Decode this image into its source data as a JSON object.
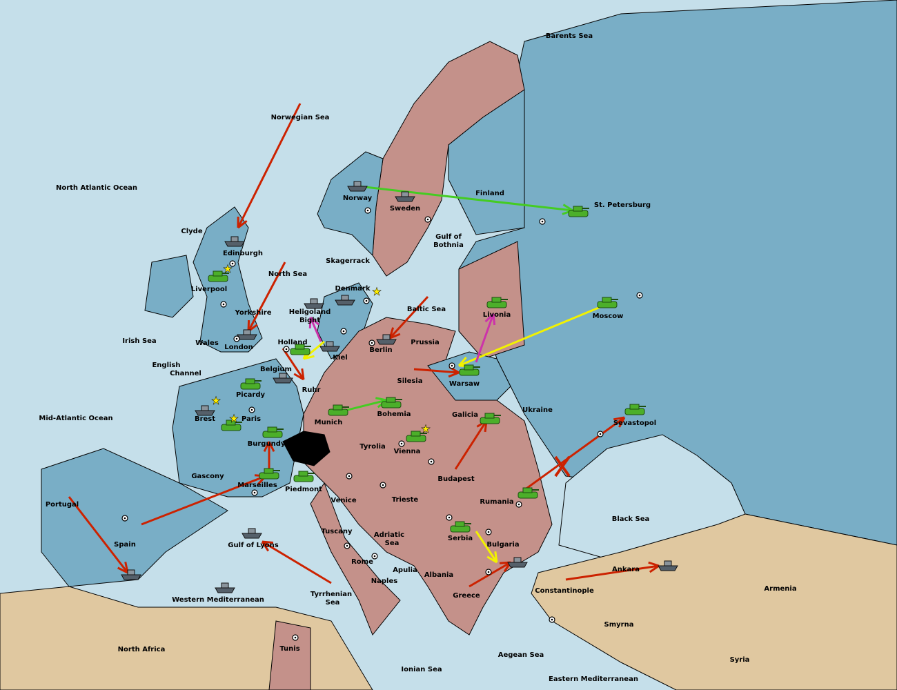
{
  "colors": {
    "sea": "#c5dfea",
    "neutral_land": "#79aec6",
    "empire": "#c4918a",
    "desert": "#e0c8a0",
    "switzerland": "#000000",
    "tank": "#4caf2a",
    "ship": "#55606a",
    "move_red": "#cc2200",
    "support_yellow": "#f2f200",
    "convoy_magenta": "#cc33aa",
    "hold_green": "#44cc22",
    "supply_star": "#ffee00"
  },
  "provinces": [
    "Barents Sea",
    "Norwegian Sea",
    "North Atlantic Ocean",
    "Norway",
    "Sweden",
    "Finland",
    "St. Petersburg",
    "Clyde",
    "Edinburgh",
    "Gulf of",
    "Bothnia",
    "Skagerrack",
    "Liverpool",
    "North Sea",
    "Denmark",
    "Baltic Sea",
    "Livonia",
    "Moscow",
    "Yorkshire",
    "Heligoland",
    "Bight",
    "Irish Sea",
    "Wales",
    "London",
    "Holland",
    "Prussia",
    "Berlin",
    "Kiel",
    "English",
    "Channel",
    "Belgium",
    "Warsaw",
    "Silesia",
    "Ruhr",
    "Picardy",
    "Ukraine",
    "Mid-Atlantic Ocean",
    "Brest",
    "Paris",
    "Munich",
    "Bohemia",
    "Galicia",
    "Sevastopol",
    "Burgundy",
    "Tyrolia",
    "Vienna",
    "Gascony",
    "Budapest",
    "Marseilles",
    "Piedmont",
    "Portugal",
    "Venice",
    "Trieste",
    "Rumania",
    "Black Sea",
    "Tuscany",
    "Adriatic",
    "Sea",
    "Serbia",
    "Spain",
    "Gulf of Lyons",
    "Bulgaria",
    "Rome",
    "Apulia",
    "Ankara",
    "Naples",
    "Albania",
    "Armenia",
    "Constantinople",
    "Tyrrhenian",
    "Sea",
    "Greece",
    "Western Mediterranean",
    "Smyrna",
    "North Africa",
    "Tunis",
    "Aegean Sea",
    "Syria",
    "Ionian Sea",
    "Eastern Mediterranean"
  ],
  "units": [
    {
      "type": "fleet",
      "province": "Norway"
    },
    {
      "type": "fleet",
      "province": "Sweden"
    },
    {
      "type": "army",
      "province": "St. Petersburg"
    },
    {
      "type": "fleet",
      "province": "Edinburgh"
    },
    {
      "type": "army",
      "province": "Liverpool"
    },
    {
      "type": "fleet",
      "province": "London"
    },
    {
      "type": "fleet",
      "province": "Heligoland Bight"
    },
    {
      "type": "fleet",
      "province": "Denmark"
    },
    {
      "type": "army",
      "province": "Livonia"
    },
    {
      "type": "army",
      "province": "Moscow"
    },
    {
      "type": "fleet",
      "province": "Berlin"
    },
    {
      "type": "army",
      "province": "Holland"
    },
    {
      "type": "fleet",
      "province": "Kiel"
    },
    {
      "type": "fleet",
      "province": "Belgium"
    },
    {
      "type": "army",
      "province": "Warsaw"
    },
    {
      "type": "army",
      "province": "Picardy"
    },
    {
      "type": "fleet",
      "province": "Brest"
    },
    {
      "type": "army",
      "province": "Paris"
    },
    {
      "type": "army",
      "province": "Munich"
    },
    {
      "type": "army",
      "province": "Bohemia"
    },
    {
      "type": "army",
      "province": "Galicia"
    },
    {
      "type": "army",
      "province": "Sevastopol"
    },
    {
      "type": "army",
      "province": "Vienna"
    },
    {
      "type": "army",
      "province": "Burgundy"
    },
    {
      "type": "army",
      "province": "Marseilles"
    },
    {
      "type": "army",
      "province": "Piedmont"
    },
    {
      "type": "army",
      "province": "Rumania"
    },
    {
      "type": "army",
      "province": "Serbia"
    },
    {
      "type": "fleet",
      "province": "Gulf of Lyons"
    },
    {
      "type": "fleet",
      "province": "Spain"
    },
    {
      "type": "fleet",
      "province": "Aegean Sea"
    },
    {
      "type": "fleet",
      "province": "Ankara"
    },
    {
      "type": "fleet",
      "province": "Western Mediterranean"
    }
  ]
}
